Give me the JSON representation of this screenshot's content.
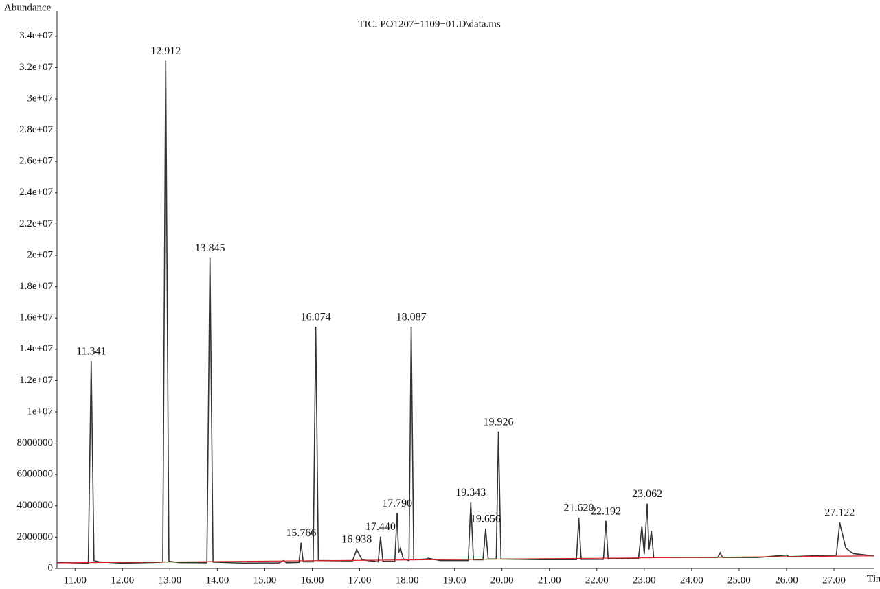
{
  "chart_data": {
    "type": "line",
    "title": "TIC: PO1207−1109−01.D\\data.ms",
    "y_label": "Abundance",
    "x_label": "Time",
    "xlim": [
      10.62,
      27.84
    ],
    "ylim": [
      0,
      35500000
    ],
    "xticks": [
      {
        "value": 11,
        "label": "11.00"
      },
      {
        "value": 12,
        "label": "12.00"
      },
      {
        "value": 13,
        "label": "13.00"
      },
      {
        "value": 14,
        "label": "14.00"
      },
      {
        "value": 15,
        "label": "15.00"
      },
      {
        "value": 16,
        "label": "16.00"
      },
      {
        "value": 17,
        "label": "17.00"
      },
      {
        "value": 18,
        "label": "18.00"
      },
      {
        "value": 19,
        "label": "19.00"
      },
      {
        "value": 20,
        "label": "20.00"
      },
      {
        "value": 21,
        "label": "21.00"
      },
      {
        "value": 22,
        "label": "22.00"
      },
      {
        "value": 23,
        "label": "23.00"
      },
      {
        "value": 24,
        "label": "24.00"
      },
      {
        "value": 25,
        "label": "25.00"
      },
      {
        "value": 26,
        "label": "26.00"
      },
      {
        "value": 27,
        "label": "27.00"
      }
    ],
    "yticks": [
      0,
      2000000,
      4000000,
      6000000,
      8000000,
      {
        "value": 10000000,
        "label": "1e+07"
      },
      {
        "value": 12000000,
        "label": "1.2e+07"
      },
      {
        "value": 14000000,
        "label": "1.4e+07"
      },
      {
        "value": 16000000,
        "label": "1.6e+07"
      },
      {
        "value": 18000000,
        "label": "1.8e+07"
      },
      {
        "value": 20000000,
        "label": "2e+07"
      },
      {
        "value": 22000000,
        "label": "2.2e+07"
      },
      {
        "value": 24000000,
        "label": "2.4e+07"
      },
      {
        "value": 26000000,
        "label": "2.6e+07"
      },
      {
        "value": 28000000,
        "label": "2.8e+07"
      },
      {
        "value": 30000000,
        "label": "3e+07"
      },
      {
        "value": 32000000,
        "label": "3.2e+07"
      },
      {
        "value": 34000000,
        "label": "3.4e+07"
      }
    ],
    "trace": {
      "color": "#333333",
      "x": [
        10.62,
        11.28,
        11.341,
        11.4,
        11.5,
        12.0,
        12.7,
        12.85,
        12.912,
        12.98,
        13.2,
        13.78,
        13.845,
        13.91,
        14.5,
        15.3,
        15.4,
        15.45,
        15.72,
        15.766,
        15.81,
        16.02,
        16.074,
        16.13,
        16.85,
        16.938,
        17.05,
        17.39,
        17.44,
        17.49,
        17.74,
        17.79,
        17.82,
        17.86,
        17.92,
        18.04,
        18.087,
        18.14,
        18.4,
        18.45,
        18.7,
        19.29,
        19.343,
        19.4,
        19.6,
        19.656,
        19.71,
        19.88,
        19.926,
        19.98,
        20.8,
        21.57,
        21.62,
        21.67,
        22.14,
        22.192,
        22.24,
        22.88,
        22.95,
        23.0,
        23.062,
        23.1,
        23.15,
        23.2,
        23.8,
        24.55,
        24.6,
        24.65,
        25.4,
        26.0,
        26.05,
        27.05,
        27.122,
        27.25,
        27.4,
        27.84
      ],
      "values": [
        380000,
        330000,
        13200000,
        500000,
        420000,
        330000,
        380000,
        400000,
        32400000,
        450000,
        370000,
        360000,
        19800000,
        400000,
        340000,
        350000,
        500000,
        360000,
        380000,
        1600000,
        420000,
        420000,
        15400000,
        500000,
        480000,
        1200000,
        550000,
        420000,
        2000000,
        450000,
        450000,
        3500000,
        1000000,
        1300000,
        600000,
        500000,
        15400000,
        550000,
        600000,
        650000,
        500000,
        500000,
        4200000,
        550000,
        550000,
        2500000,
        600000,
        600000,
        8700000,
        600000,
        560000,
        560000,
        3200000,
        580000,
        580000,
        3000000,
        600000,
        650000,
        2700000,
        900000,
        4100000,
        1200000,
        2400000,
        700000,
        700000,
        700000,
        1000000,
        700000,
        700000,
        850000,
        750000,
        850000,
        2900000,
        1300000,
        950000,
        800000
      ]
    },
    "baseline": {
      "color": "#d62020",
      "x": [
        10.62,
        27.84
      ],
      "values": [
        350000,
        800000
      ]
    },
    "peaks": {
      "x": [
        11.341,
        12.912,
        13.845,
        15.766,
        16.074,
        16.938,
        17.44,
        17.79,
        18.087,
        19.343,
        19.656,
        19.926,
        21.62,
        22.192,
        23.062,
        27.122
      ],
      "values": [
        13200000,
        32400000,
        19800000,
        1600000,
        15400000,
        1200000,
        2000000,
        3500000,
        15400000,
        4200000,
        2500000,
        8700000,
        3200000,
        3000000,
        4100000,
        2900000
      ],
      "labels": [
        "11.341",
        "12.912",
        "13.845",
        "15.766",
        "16.074",
        "16.938",
        "17.440",
        "17.790",
        "18.087",
        "19.343",
        "19.656",
        "19.926",
        "21.620",
        "22.192",
        "23.062",
        "27.122"
      ]
    }
  }
}
